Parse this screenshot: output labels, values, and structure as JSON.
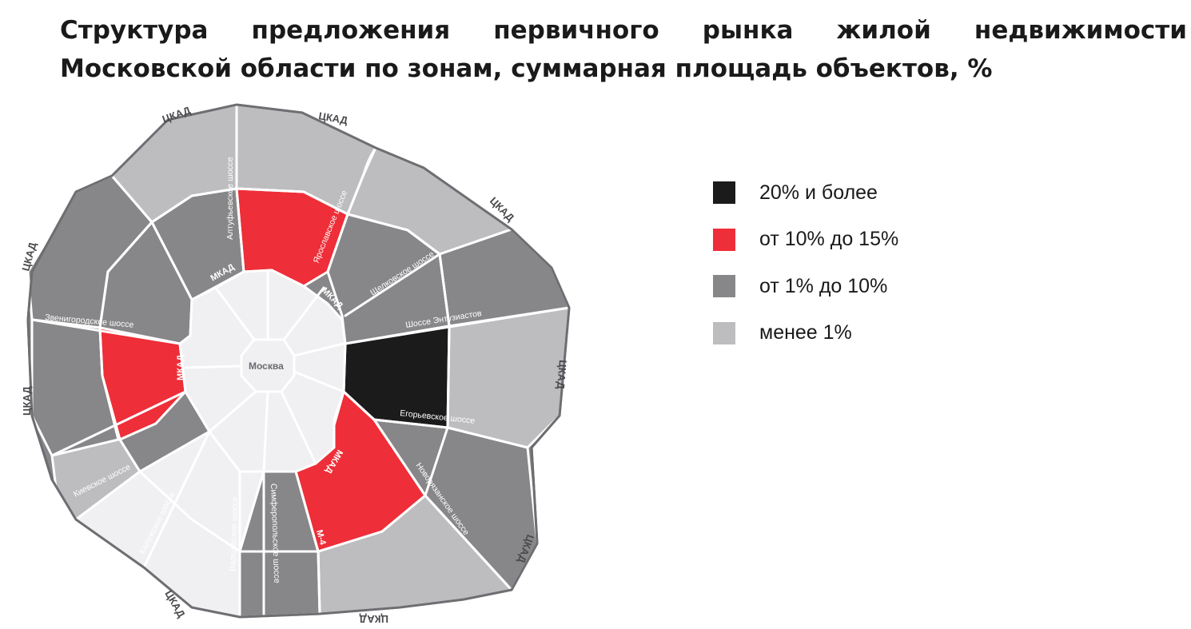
{
  "title": {
    "line1": "Структура предложения первичного рынка жилой недвижимости",
    "line2": "Московской области по зонам, суммарная площадь объектов, %"
  },
  "colors": {
    "black": "#1c1b1b",
    "red": "#ee2e38",
    "dark_gray": "#878789",
    "light_gray": "#bdbdbf",
    "city": "#f0eff2",
    "outline": "#6e6e72"
  },
  "legend": [
    {
      "label": "20% и более",
      "color": "#1c1b1b"
    },
    {
      "label": "от 10% до 15%",
      "color": "#ee2e38"
    },
    {
      "label": "от 1% до 10%",
      "color": "#878789"
    },
    {
      "label": "менее 1%",
      "color": "#bdbdbf"
    }
  ],
  "map": {
    "city_label": "Москва",
    "mkad_label": "МКАД",
    "ckad_label": "ЦКАД",
    "m4_label": "М-4",
    "roads": {
      "altufyevskoe": "Алтуфьевское шоссе",
      "yaroslavskoe": "Ярославское шоссе",
      "shchelkovskoe": "Щелковское шоссе",
      "entuziastov": "Шоссе Энтузиастов",
      "egoryevskoe": "Егорьевское шоссе",
      "novoryazanskoe": "Новорязанское шоссе",
      "simferopolskoe": "Симферопольское шоссе",
      "varshavskoe": "Варшавское шоссе",
      "kaluzhskoe": "Калужское шоссе",
      "kievskoe": "Киевское шоссе",
      "zvenigorodskoe": "Звенигородское шоссе"
    },
    "zones": [
      {
        "name": "north-west-outer",
        "class": "менее 1%"
      },
      {
        "name": "north-outer",
        "class": "менее 1%"
      },
      {
        "name": "north-east-outer",
        "class": "менее 1%"
      },
      {
        "name": "east-outer",
        "class": "менее 1%"
      },
      {
        "name": "south-east-outer",
        "class": "менее 1%"
      },
      {
        "name": "south-west-outer",
        "class": "менее 1%"
      },
      {
        "name": "west-outer",
        "class": "от 1% до 10%"
      },
      {
        "name": "south-west-far",
        "class": "от 1% до 10%"
      },
      {
        "name": "east-far",
        "class": "от 1% до 10%"
      },
      {
        "name": "south-east-far",
        "class": "от 1% до 10%"
      },
      {
        "name": "south-outer",
        "class": "от 1% до 10%"
      },
      {
        "name": "yaroslavsky-inner",
        "class": "от 10% до 15%"
      },
      {
        "name": "west-inner",
        "class": "от 10% до 15%"
      },
      {
        "name": "south-east-inner",
        "class": "от 10% до 15%"
      },
      {
        "name": "east-inner",
        "class": "20% и более"
      }
    ]
  }
}
